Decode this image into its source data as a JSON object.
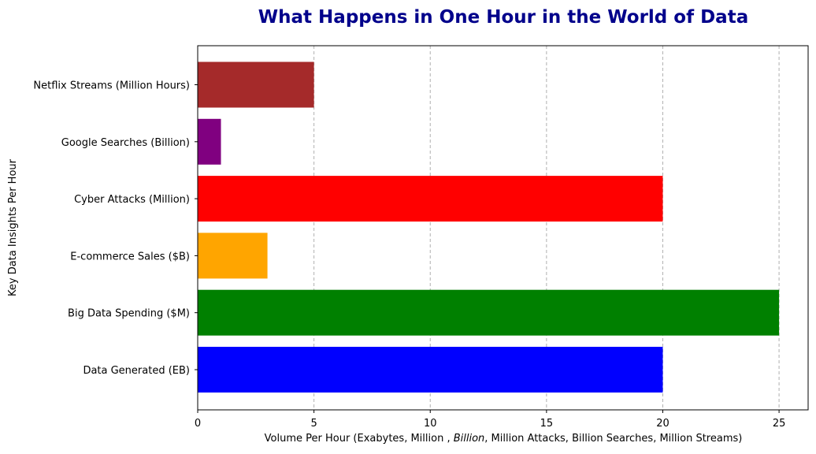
{
  "chart_data": {
    "type": "bar",
    "orientation": "horizontal",
    "title": "What Happens in One Hour in the World of Data",
    "xlabel": "Volume Per Hour (Exabytes, Million , Billion, Million Attacks, Billion Searches, Million Streams)",
    "ylabel": "Key Data Insights Per Hour",
    "categories": [
      "Data Generated (EB)",
      "Big Data Spending ($M)",
      "E-commerce Sales ($B)",
      "Cyber Attacks (Million)",
      "Google Searches (Billion)",
      "Netflix Streams (Million Hours)"
    ],
    "values": [
      20,
      25,
      3,
      20,
      1,
      5
    ],
    "colors": [
      "#0000ff",
      "#008000",
      "#ffa500",
      "#ff0000",
      "#800080",
      "#a52a2a"
    ],
    "xlim": [
      0,
      26.25
    ],
    "xticks": [
      0,
      5,
      10,
      15,
      20,
      25
    ],
    "grid": "x-dashed",
    "title_color": "#00008b"
  }
}
